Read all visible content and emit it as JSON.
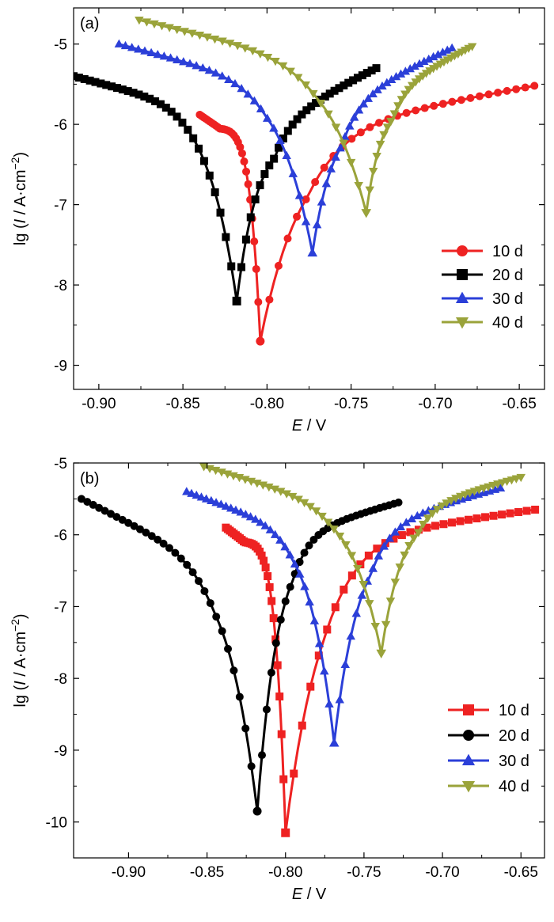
{
  "chart_data": [
    {
      "type": "line",
      "panel_label": "(a)",
      "xlabel_italic": "E",
      "xlabel_rest": " / V",
      "ylabel_prefix": "lg (",
      "ylabel_italic": "I",
      "ylabel_mid": " / A·cm",
      "ylabel_sup": "−2",
      "ylabel_suffix": ")",
      "xlim": [
        -0.915,
        -0.635
      ],
      "ylim": [
        -9.3,
        -4.55
      ],
      "xticks": [
        -0.9,
        -0.85,
        -0.8,
        -0.75,
        -0.7,
        -0.65
      ],
      "xtick_labels": [
        "-0.90",
        "-0.85",
        "-0.80",
        "-0.75",
        "-0.70",
        "-0.65"
      ],
      "yticks": [
        -9,
        -8,
        -7,
        -6,
        -5
      ],
      "ytick_labels": [
        "-9",
        "-8",
        "-7",
        "-6",
        "-5"
      ],
      "legend_position": "right",
      "series": [
        {
          "name": "10 d",
          "color": "#ee2222",
          "marker": "circle",
          "ecorr": -0.804,
          "y_tip": -8.7,
          "cathodic": {
            "x0": -0.84,
            "y0": -5.88,
            "plateau_to": -0.828,
            "plateau_y": -6.05
          },
          "anodic": {
            "x1": -0.641,
            "y1": -5.52,
            "knee_x": -0.775,
            "knee_y": -6.25
          }
        },
        {
          "name": "20 d",
          "color": "#000000",
          "marker": "square",
          "ecorr": -0.818,
          "y_tip": -8.2,
          "cathodic": {
            "x0": -0.915,
            "y0": -5.4,
            "plateau_to": -0.835,
            "plateau_y": -5.85
          },
          "anodic": {
            "x1": -0.735,
            "y1": -5.3,
            "knee_x": -0.795,
            "knee_y": -6.2
          }
        },
        {
          "name": "30 d",
          "color": "#2b3fd8",
          "marker": "triangle-up",
          "ecorr": -0.773,
          "y_tip": -7.6,
          "cathodic": {
            "x0": -0.888,
            "y0": -5.0,
            "plateau_to": -0.8,
            "plateau_y": -5.5
          },
          "anodic": {
            "x1": -0.69,
            "y1": -5.05,
            "knee_x": -0.755,
            "knee_y": -5.95
          }
        },
        {
          "name": "40 d",
          "color": "#9aa33a",
          "marker": "triangle-down",
          "ecorr": -0.741,
          "y_tip": -7.1,
          "cathodic": {
            "x0": -0.876,
            "y0": -4.7,
            "plateau_to": -0.77,
            "plateau_y": -5.25
          },
          "anodic": {
            "x1": -0.678,
            "y1": -5.03,
            "knee_x": -0.725,
            "knee_y": -5.75
          }
        }
      ]
    },
    {
      "type": "line",
      "panel_label": "(b)",
      "xlabel_italic": "E",
      "xlabel_rest": " / V",
      "ylabel_prefix": "lg (",
      "ylabel_italic": "I",
      "ylabel_mid": " / A·cm",
      "ylabel_sup": "−2",
      "ylabel_suffix": ")",
      "xlim": [
        -0.935,
        -0.635
      ],
      "ylim": [
        -10.5,
        -5.0
      ],
      "xticks": [
        -0.9,
        -0.85,
        -0.8,
        -0.75,
        -0.7,
        -0.65
      ],
      "xtick_labels": [
        "-0.90",
        "-0.85",
        "-0.80",
        "-0.75",
        "-0.70",
        "-0.65"
      ],
      "yticks": [
        -10,
        -9,
        -8,
        -7,
        -6,
        -5
      ],
      "ytick_labels": [
        "-10",
        "-9",
        "-8",
        "-7",
        "-6",
        "-5"
      ],
      "legend_position": "bottom-right",
      "series": [
        {
          "name": "10 d",
          "color": "#ee2222",
          "marker": "square",
          "ecorr": -0.8,
          "y_tip": -10.15,
          "cathodic": {
            "x0": -0.838,
            "y0": -5.9,
            "plateau_to": -0.826,
            "plateau_y": -6.1
          },
          "anodic": {
            "x1": -0.641,
            "y1": -5.65,
            "knee_x": -0.775,
            "knee_y": -6.25
          }
        },
        {
          "name": "20 d",
          "color": "#000000",
          "marker": "circle",
          "ecorr": -0.818,
          "y_tip": -9.85,
          "cathodic": {
            "x0": -0.93,
            "y0": -5.5,
            "plateau_to": -0.845,
            "plateau_y": -6.45
          },
          "anodic": {
            "x1": -0.728,
            "y1": -5.55,
            "knee_x": -0.795,
            "knee_y": -6.15
          }
        },
        {
          "name": "30 d",
          "color": "#2b3fd8",
          "marker": "triangle-up",
          "ecorr": -0.769,
          "y_tip": -8.9,
          "cathodic": {
            "x0": -0.863,
            "y0": -5.4,
            "plateau_to": -0.795,
            "plateau_y": -5.95
          },
          "anodic": {
            "x1": -0.663,
            "y1": -5.35,
            "knee_x": -0.745,
            "knee_y": -6.05
          }
        },
        {
          "name": "40 d",
          "color": "#9aa33a",
          "marker": "triangle-down",
          "ecorr": -0.739,
          "y_tip": -7.65,
          "cathodic": {
            "x0": -0.852,
            "y0": -5.05,
            "plateau_to": -0.77,
            "plateau_y": -5.6
          },
          "anodic": {
            "x1": -0.65,
            "y1": -5.2,
            "knee_x": -0.715,
            "knee_y": -5.75
          }
        }
      ]
    }
  ]
}
